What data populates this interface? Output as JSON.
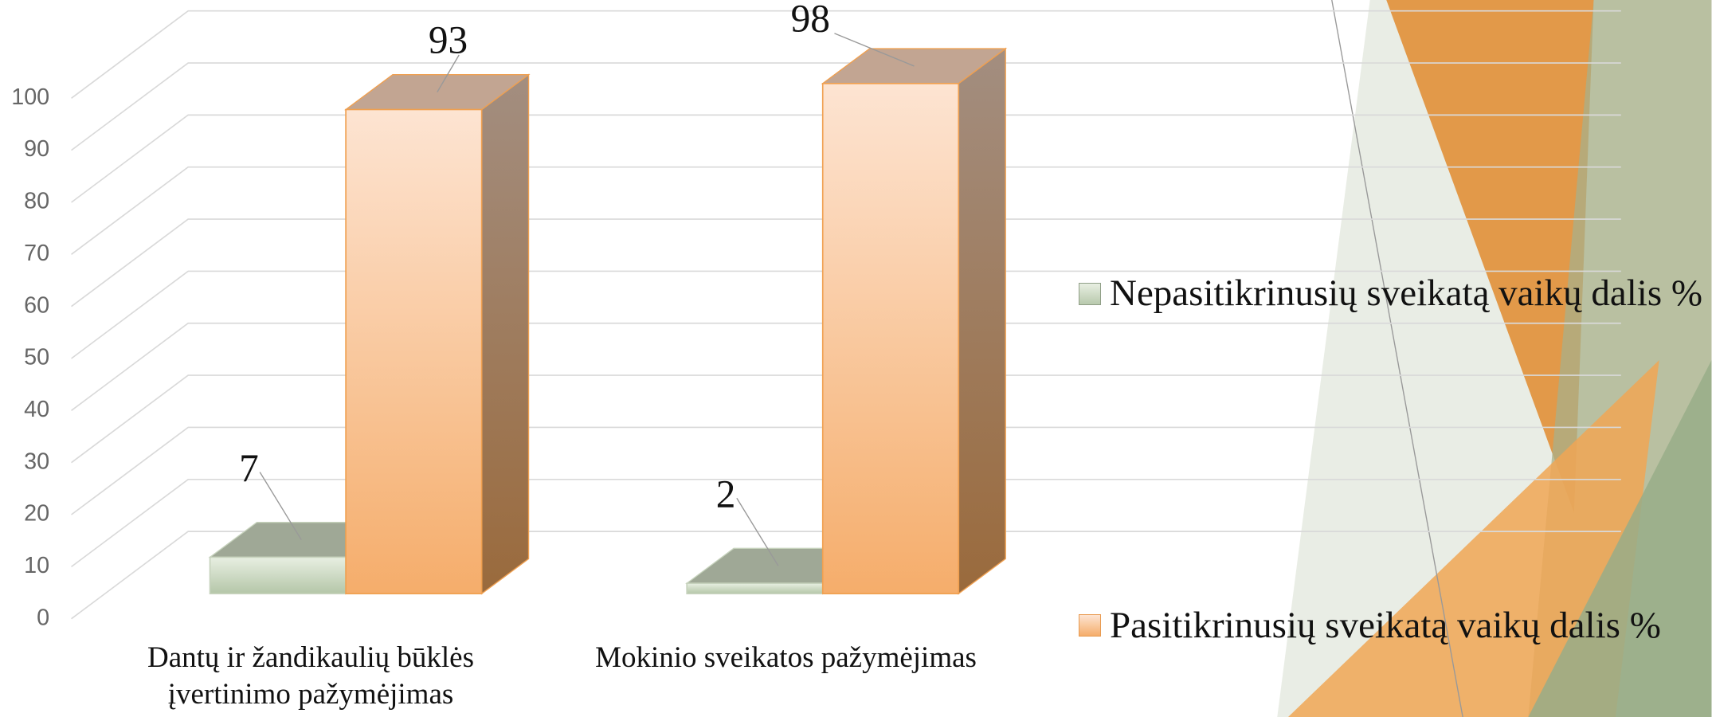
{
  "chart_data": {
    "type": "bar3d",
    "categories": [
      "Dantų ir žandikaulių būklės įvertinimo pažymėjimas",
      "Mokinio sveikatos pažymėjimas"
    ],
    "series": [
      {
        "name": "Nepasitikrinusių sveikatą vaikų dalis %",
        "color": "#b8c9ad",
        "values": [
          7,
          2
        ]
      },
      {
        "name": "Pasitikrinusių sveikatą vaikų dalis %",
        "color": "#f5ad6b",
        "values": [
          93,
          98
        ]
      }
    ],
    "ylim": [
      0,
      100
    ],
    "yticks": [
      0,
      10,
      20,
      30,
      40,
      50,
      60,
      70,
      80,
      90,
      100
    ],
    "grid": true,
    "legend": "right"
  }
}
